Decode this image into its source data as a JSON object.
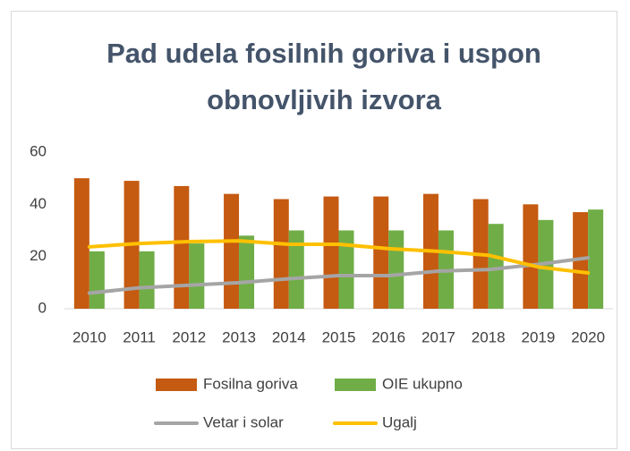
{
  "chart_data": {
    "type": "combo",
    "title": "Pad udela fosilnih goriva i uspon obnovljivih izvora",
    "categories": [
      "2010",
      "2011",
      "2012",
      "2013",
      "2014",
      "2015",
      "2016",
      "2017",
      "2018",
      "2019",
      "2020"
    ],
    "series": [
      {
        "name": "Fosilna goriva",
        "type": "bar",
        "color": "#c55a11",
        "values": [
          50,
          49,
          47,
          44,
          42,
          43,
          43,
          44,
          42,
          40,
          37
        ]
      },
      {
        "name": "OIE ukupno",
        "type": "bar",
        "color": "#70ad47",
        "values": [
          22,
          22,
          25,
          28,
          30,
          30,
          30,
          30,
          32.5,
          34,
          38
        ]
      },
      {
        "name": "Vetar i solar",
        "type": "line",
        "color": "#a5a5a5",
        "values": [
          6,
          8,
          9,
          10,
          11.5,
          12.7,
          12.7,
          14.4,
          15,
          17,
          19.5
        ]
      },
      {
        "name": "Ugalj",
        "type": "line",
        "color": "#ffc000",
        "values": [
          23.7,
          25,
          25.7,
          26,
          24.7,
          24.7,
          23,
          22,
          20.5,
          16,
          13.7
        ]
      }
    ],
    "ylim": [
      0,
      60
    ],
    "yticks": [
      0,
      20,
      40,
      60
    ],
    "grid": false,
    "legend": "bottom"
  }
}
